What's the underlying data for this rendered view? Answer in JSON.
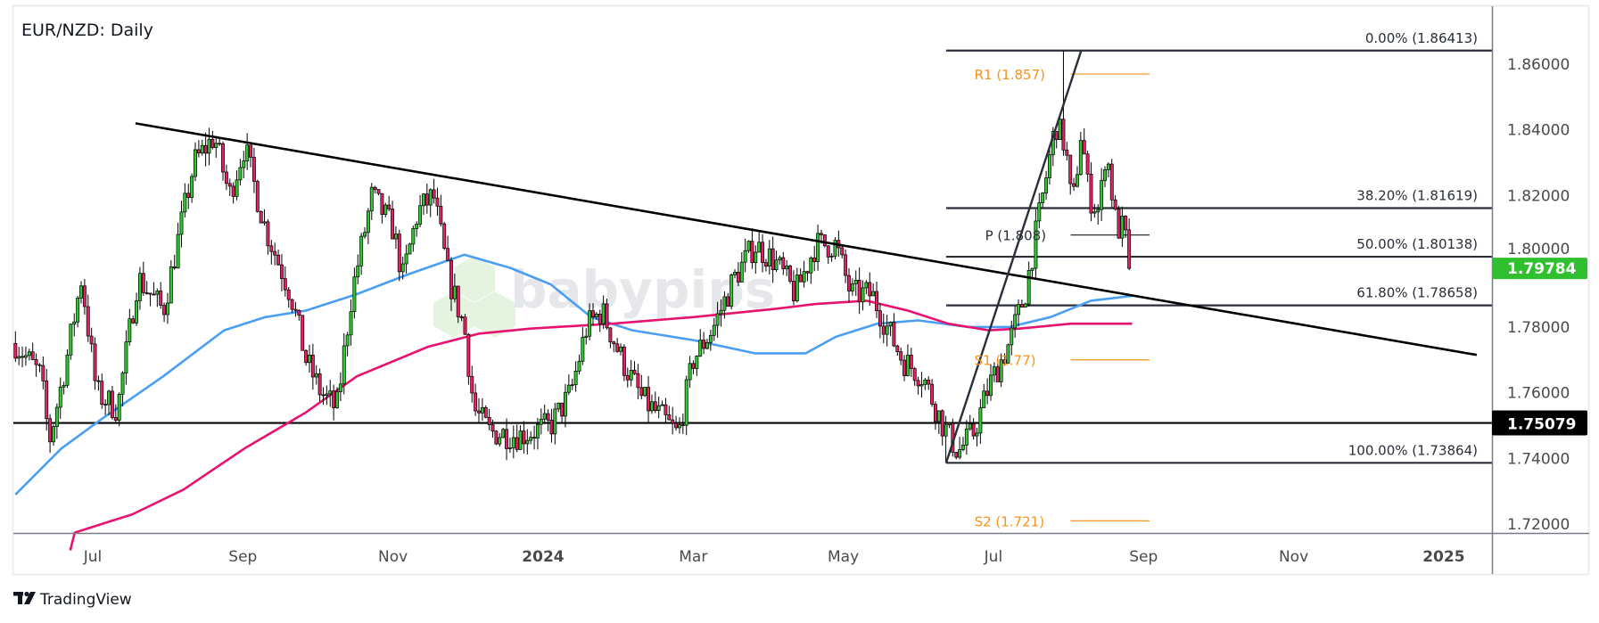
{
  "header": {
    "title": "EUR/NZD: Daily"
  },
  "branding": {
    "footer_logo": "TradingView",
    "watermark": "babypips"
  },
  "colors": {
    "up": "#33c633",
    "down": "#e91e63",
    "ma_fast": "#4a9ff5",
    "ma_slow": "#e8136f",
    "pivot": "#f7931a",
    "last_price_bg": "#2fbf2f",
    "level_bg": "#000000"
  },
  "chart_data": {
    "type": "candlestick",
    "title": "EUR/NZD: Daily",
    "x_unit": "months since 2023-07-01",
    "x_range": [
      -1.1,
      18.64
    ],
    "ylim": [
      1.712,
      1.8705
    ],
    "y_ticks": [
      "1.86000",
      "1.84000",
      "1.82000",
      "1.80000",
      "1.78000",
      "1.76000",
      "1.74000",
      "1.72000"
    ],
    "y_tick_values": [
      1.86,
      1.84,
      1.82,
      1.8,
      1.78,
      1.76,
      1.74,
      1.72
    ],
    "x_ticks": [
      {
        "label": "Jul",
        "m": 0
      },
      {
        "label": "Sep",
        "m": 2
      },
      {
        "label": "Nov",
        "m": 4
      },
      {
        "label": "2024",
        "m": 6
      },
      {
        "label": "Mar",
        "m": 8
      },
      {
        "label": "May",
        "m": 10
      },
      {
        "label": "Jul",
        "m": 12
      },
      {
        "label": "Sep",
        "m": 14
      },
      {
        "label": "Nov",
        "m": 16
      },
      {
        "label": "2025",
        "m": 18
      }
    ],
    "close_path": [
      [
        -1.03,
        1.775
      ],
      [
        -0.69,
        1.765
      ],
      [
        -0.58,
        1.745
      ],
      [
        -0.35,
        1.77
      ],
      [
        -0.15,
        1.795
      ],
      [
        0.05,
        1.76
      ],
      [
        0.33,
        1.755
      ],
      [
        0.6,
        1.795
      ],
      [
        0.94,
        1.785
      ],
      [
        1.35,
        1.83
      ],
      [
        1.62,
        1.838
      ],
      [
        1.82,
        1.82
      ],
      [
        2.02,
        1.835
      ],
      [
        2.3,
        1.81
      ],
      [
        2.64,
        1.79
      ],
      [
        2.84,
        1.77
      ],
      [
        3.04,
        1.76
      ],
      [
        3.25,
        1.755
      ],
      [
        3.45,
        1.79
      ],
      [
        3.72,
        1.82
      ],
      [
        4.0,
        1.81
      ],
      [
        4.13,
        1.795
      ],
      [
        4.33,
        1.815
      ],
      [
        4.54,
        1.82
      ],
      [
        4.74,
        1.795
      ],
      [
        4.95,
        1.78
      ],
      [
        5.08,
        1.755
      ],
      [
        5.29,
        1.748
      ],
      [
        5.69,
        1.747
      ],
      [
        6.1,
        1.75
      ],
      [
        6.37,
        1.76
      ],
      [
        6.58,
        1.78
      ],
      [
        6.78,
        1.785
      ],
      [
        7.05,
        1.77
      ],
      [
        7.32,
        1.758
      ],
      [
        7.6,
        1.752
      ],
      [
        7.8,
        1.747
      ],
      [
        8.0,
        1.77
      ],
      [
        8.27,
        1.78
      ],
      [
        8.55,
        1.795
      ],
      [
        8.82,
        1.805
      ],
      [
        9.09,
        1.8
      ],
      [
        9.36,
        1.79
      ],
      [
        9.63,
        1.805
      ],
      [
        9.9,
        1.805
      ],
      [
        10.1,
        1.79
      ],
      [
        10.38,
        1.79
      ],
      [
        10.58,
        1.78
      ],
      [
        10.79,
        1.77
      ],
      [
        11.06,
        1.765
      ],
      [
        11.33,
        1.75
      ],
      [
        11.53,
        1.742
      ],
      [
        11.74,
        1.748
      ],
      [
        11.94,
        1.762
      ],
      [
        12.21,
        1.775
      ],
      [
        12.42,
        1.79
      ],
      [
        12.62,
        1.815
      ],
      [
        12.83,
        1.842
      ],
      [
        12.96,
        1.835
      ],
      [
        13.05,
        1.815
      ],
      [
        13.17,
        1.84
      ],
      [
        13.27,
        1.82
      ],
      [
        13.41,
        1.815
      ],
      [
        13.5,
        1.835
      ],
      [
        13.64,
        1.81
      ],
      [
        13.74,
        1.81
      ],
      [
        13.82,
        1.79784
      ]
    ],
    "extremes": {
      "high": [
        12.93,
        1.86413
      ],
      "low": [
        11.37,
        1.73864
      ]
    },
    "last_price": "1.79784",
    "last_price_value": 1.79784,
    "series": [
      {
        "name": "MA fast (blue)",
        "points": [
          [
            -1.03,
            1.729
          ],
          [
            -0.42,
            1.743
          ],
          [
            0.12,
            1.752
          ],
          [
            0.94,
            1.765
          ],
          [
            1.75,
            1.779
          ],
          [
            2.3,
            1.783
          ],
          [
            2.84,
            1.785
          ],
          [
            3.52,
            1.79
          ],
          [
            4.2,
            1.796
          ],
          [
            4.95,
            1.802
          ],
          [
            5.56,
            1.798
          ],
          [
            6.1,
            1.793
          ],
          [
            6.64,
            1.783
          ],
          [
            7.19,
            1.779
          ],
          [
            8.0,
            1.776
          ],
          [
            8.82,
            1.772
          ],
          [
            9.5,
            1.772
          ],
          [
            9.9,
            1.777
          ],
          [
            10.45,
            1.781
          ],
          [
            11.0,
            1.782
          ],
          [
            11.67,
            1.78
          ],
          [
            12.21,
            1.78
          ],
          [
            12.76,
            1.783
          ],
          [
            13.3,
            1.788
          ],
          [
            13.85,
            1.7895
          ]
        ]
      },
      {
        "name": "MA slow (pink)",
        "points": [
          [
            -0.3,
            1.712
          ],
          [
            -0.24,
            1.7174
          ],
          [
            0.53,
            1.723
          ],
          [
            1.21,
            1.7305
          ],
          [
            2.02,
            1.743
          ],
          [
            2.84,
            1.754
          ],
          [
            3.52,
            1.765
          ],
          [
            4.47,
            1.774
          ],
          [
            5.15,
            1.778
          ],
          [
            5.83,
            1.7795
          ],
          [
            6.92,
            1.781
          ],
          [
            8.0,
            1.783
          ],
          [
            9.09,
            1.7855
          ],
          [
            9.63,
            1.787
          ],
          [
            10.31,
            1.788
          ],
          [
            10.86,
            1.785
          ],
          [
            11.4,
            1.781
          ],
          [
            11.94,
            1.779
          ],
          [
            12.35,
            1.7795
          ],
          [
            13.03,
            1.781
          ],
          [
            13.85,
            1.781
          ]
        ]
      }
    ],
    "trendline": [
      [
        0.57,
        1.842
      ],
      [
        18.44,
        1.7715
      ]
    ],
    "support": {
      "label": "1.75079",
      "value": 1.75079
    },
    "fibonacci": {
      "start_m": 11.37,
      "swing": [
        [
          11.37,
          1.73864
        ],
        [
          13.17,
          1.86413
        ]
      ],
      "levels": [
        {
          "label": "0.00% (1.86413)",
          "value": 1.86413
        },
        {
          "label": "38.20% (1.81619)",
          "value": 1.81619
        },
        {
          "label": "50.00% (1.80138)",
          "value": 1.80138
        },
        {
          "label": "61.80% (1.78658)",
          "value": 1.78658
        },
        {
          "label": "100.00% (1.73864)",
          "value": 1.73864
        }
      ]
    },
    "pivots": [
      {
        "label": "R1 (1.857)",
        "value": 1.857,
        "kind": "orange"
      },
      {
        "label": "P (1.808)",
        "value": 1.808,
        "kind": "black"
      },
      {
        "label": "S1 (1.77)",
        "value": 1.77,
        "kind": "orange"
      },
      {
        "label": "S2 (1.721)",
        "value": 1.721,
        "kind": "orange"
      }
    ],
    "pivot_range_m": [
      13.03,
      14.08
    ]
  }
}
